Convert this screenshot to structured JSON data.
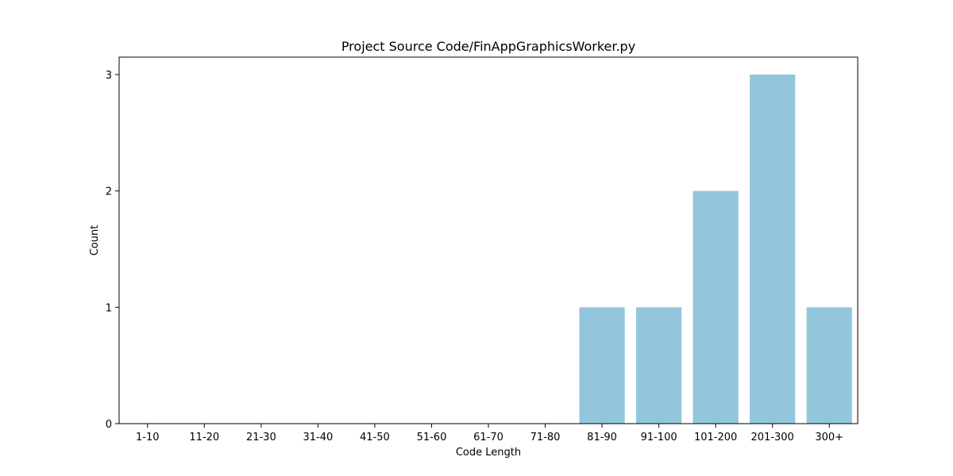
{
  "chart_data": {
    "type": "bar",
    "title": "Project Source Code/FinAppGraphicsWorker.py",
    "xlabel": "Code Length",
    "ylabel": "Count",
    "categories": [
      "1-10",
      "11-20",
      "21-30",
      "31-40",
      "41-50",
      "51-60",
      "61-70",
      "71-80",
      "81-90",
      "91-100",
      "101-200",
      "201-300",
      "300+"
    ],
    "values": [
      0,
      0,
      0,
      0,
      0,
      0,
      0,
      0,
      1,
      1,
      2,
      3,
      1
    ],
    "ylim": [
      0,
      3.15
    ],
    "yticks": [
      0,
      1,
      2,
      3
    ],
    "grid": false,
    "bar_color": "#92c6dd"
  }
}
